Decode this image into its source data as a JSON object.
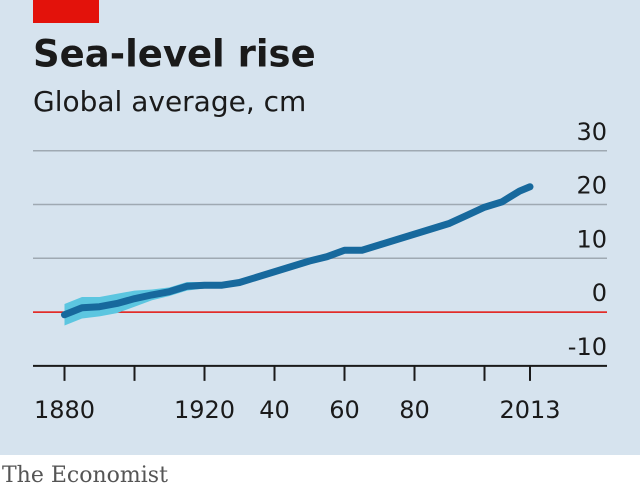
{
  "chart_data": {
    "type": "line",
    "title": "Sea-level rise",
    "subtitle": "Global average, cm",
    "source": "The Economist",
    "x": [
      1880,
      1885,
      1890,
      1895,
      1900,
      1905,
      1910,
      1915,
      1920,
      1925,
      1930,
      1935,
      1940,
      1945,
      1950,
      1955,
      1960,
      1965,
      1970,
      1975,
      1980,
      1985,
      1990,
      1995,
      2000,
      2005,
      2010,
      2013
    ],
    "series": [
      {
        "color": "#17699d",
        "band_color": "#5cc6e0",
        "values": [
          -0.5,
          0.8,
          1.0,
          1.6,
          2.5,
          3.2,
          3.8,
          4.8,
          5.0,
          5.0,
          5.5,
          6.5,
          7.5,
          8.5,
          9.5,
          10.3,
          11.5,
          11.5,
          12.5,
          13.5,
          14.5,
          15.5,
          16.5,
          18.0,
          19.5,
          20.5,
          22.5,
          23.3
        ],
        "lower": [
          -2.5,
          -1.2,
          -0.8,
          -0.2,
          1.0,
          2.2,
          3.0,
          4.0,
          4.4,
          4.5,
          5.0,
          6.0,
          7.0,
          8.0,
          9.0,
          9.9,
          11.1,
          11.1,
          12.1,
          13.1,
          14.1,
          15.1,
          16.1,
          17.6,
          19.1,
          20.1,
          22.1,
          22.9
        ],
        "upper": [
          1.5,
          2.8,
          2.8,
          3.4,
          4.0,
          4.2,
          4.6,
          5.6,
          5.6,
          5.5,
          6.0,
          7.0,
          8.0,
          9.0,
          10.0,
          10.7,
          11.9,
          11.9,
          12.9,
          13.9,
          14.9,
          15.9,
          16.9,
          18.4,
          19.9,
          20.9,
          22.9,
          23.7
        ]
      }
    ],
    "xlim": [
      1871,
      2035
    ],
    "ylim": [
      -13,
      32
    ],
    "xticks": [
      1880,
      {
        "value": 1900,
        "label": null
      },
      1920,
      {
        "value": 1940,
        "label": "40"
      },
      {
        "value": 1960,
        "label": "60"
      },
      {
        "value": 1980,
        "label": "80"
      },
      {
        "value": 2000,
        "label": null
      },
      2013
    ],
    "yticks": [
      -10,
      0,
      10,
      20,
      30
    ],
    "grid": true,
    "zero_line_color": "#e3120b"
  }
}
